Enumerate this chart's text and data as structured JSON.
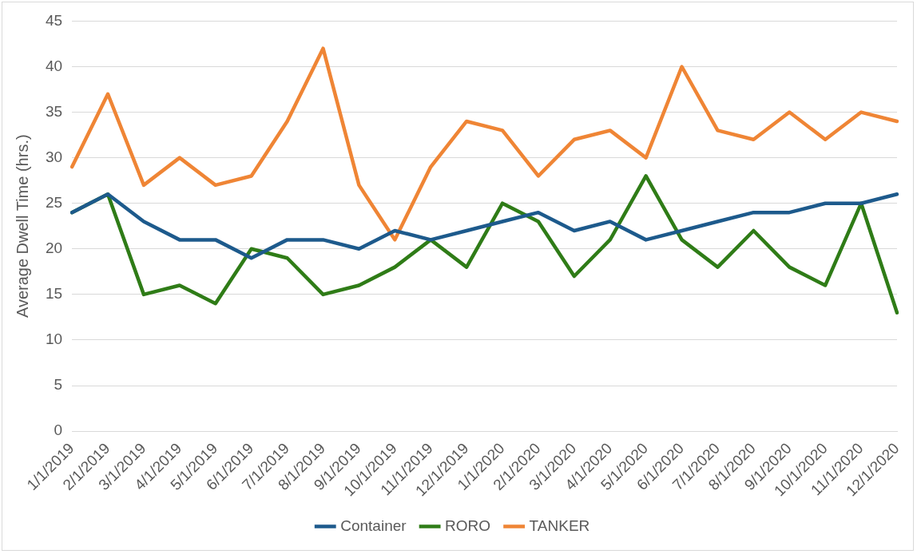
{
  "chart_data": {
    "type": "line",
    "ylabel": "Average Dwell Time (hrs.)",
    "categories": [
      "1/1/2019",
      "2/1/2019",
      "3/1/2019",
      "4/1/2019",
      "5/1/2019",
      "6/1/2019",
      "7/1/2019",
      "8/1/2019",
      "9/1/2019",
      "10/1/2019",
      "11/1/2019",
      "12/1/2019",
      "1/1/2020",
      "2/1/2020",
      "3/1/2020",
      "4/1/2020",
      "5/1/2020",
      "6/1/2020",
      "7/1/2020",
      "8/1/2020",
      "9/1/2020",
      "10/1/2020",
      "11/1/2020",
      "12/1/2020"
    ],
    "series": [
      {
        "name": "Container",
        "color": "#1d5a8c",
        "values": [
          24,
          26,
          23,
          21,
          21,
          19,
          21,
          21,
          20,
          22,
          21,
          22,
          23,
          24,
          22,
          23,
          21,
          22,
          23,
          24,
          24,
          25,
          25,
          26
        ]
      },
      {
        "name": "RORO",
        "color": "#2f7c17",
        "values": [
          24,
          26,
          15,
          16,
          14,
          20,
          19,
          15,
          16,
          18,
          21,
          18,
          25,
          23,
          17,
          21,
          28,
          21,
          18,
          22,
          18,
          16,
          25,
          13
        ]
      },
      {
        "name": "TANKER",
        "color": "#ef8535",
        "values": [
          29,
          37,
          27,
          30,
          27,
          28,
          34,
          42,
          27,
          21,
          29,
          34,
          33,
          28,
          32,
          33,
          30,
          40,
          33,
          32,
          35,
          32,
          35,
          34
        ]
      }
    ],
    "ylim": [
      0,
      45
    ],
    "yticks": [
      0,
      5,
      10,
      15,
      20,
      25,
      30,
      35,
      40,
      45
    ],
    "grid": "y",
    "legend": "bottom",
    "marker": "none",
    "line_style": "solid"
  }
}
